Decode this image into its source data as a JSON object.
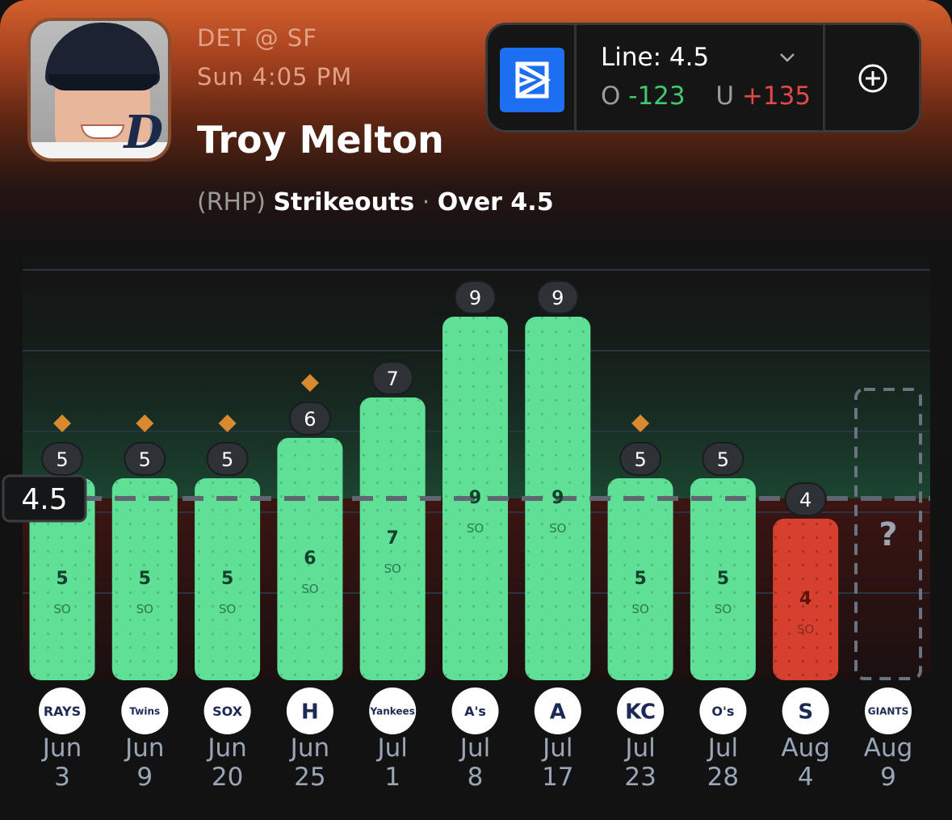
{
  "header": {
    "matchup": "DET @ SF",
    "game_time": "Sun 4:05 PM",
    "player_name": "Troy Melton",
    "position": "(RHP)",
    "stat": "Strikeouts",
    "separator": "·",
    "pick": "Over 4.5",
    "avatar_logo": "D"
  },
  "line_box": {
    "line_label": "Line: 4.5",
    "over_key": "O",
    "over_odds": "-123",
    "under_key": "U",
    "under_odds": "+135",
    "book_icon": "sportsbook-logo-icon",
    "dropdown_icon": "chevron-down-icon",
    "add_icon": "plus-circle-icon"
  },
  "colors": {
    "hit": "#5fe096",
    "miss": "#d6402f",
    "accent": "#d98a2e",
    "over_odds": "#43c872",
    "under_odds": "#e24a48"
  },
  "chart_data": {
    "type": "bar",
    "line": 4.5,
    "line_label": "4.5",
    "unit_label": "SO",
    "ylim": [
      0,
      10
    ],
    "grid": true,
    "categories": [
      {
        "month": "Jun",
        "day": "3",
        "team": "RAYS"
      },
      {
        "month": "Jun",
        "day": "9",
        "team": "Twins"
      },
      {
        "month": "Jun",
        "day": "20",
        "team": "SOX"
      },
      {
        "month": "Jun",
        "day": "25",
        "team": "H"
      },
      {
        "month": "Jul",
        "day": "1",
        "team": "Yankees"
      },
      {
        "month": "Jul",
        "day": "8",
        "team": "A's"
      },
      {
        "month": "Jul",
        "day": "17",
        "team": "A"
      },
      {
        "month": "Jul",
        "day": "23",
        "team": "KC"
      },
      {
        "month": "Jul",
        "day": "28",
        "team": "O's"
      },
      {
        "month": "Aug",
        "day": "4",
        "team": "S"
      },
      {
        "month": "Aug",
        "day": "9",
        "team": "GIANTS"
      }
    ],
    "values": [
      5,
      5,
      5,
      6,
      7,
      9,
      9,
      5,
      5,
      4,
      null
    ],
    "value_labels": [
      "5",
      "5",
      "5",
      "6",
      "7",
      "9",
      "9",
      "5",
      "5",
      "4",
      "?"
    ],
    "markers": [
      true,
      true,
      true,
      true,
      false,
      false,
      false,
      true,
      false,
      false,
      false
    ]
  }
}
